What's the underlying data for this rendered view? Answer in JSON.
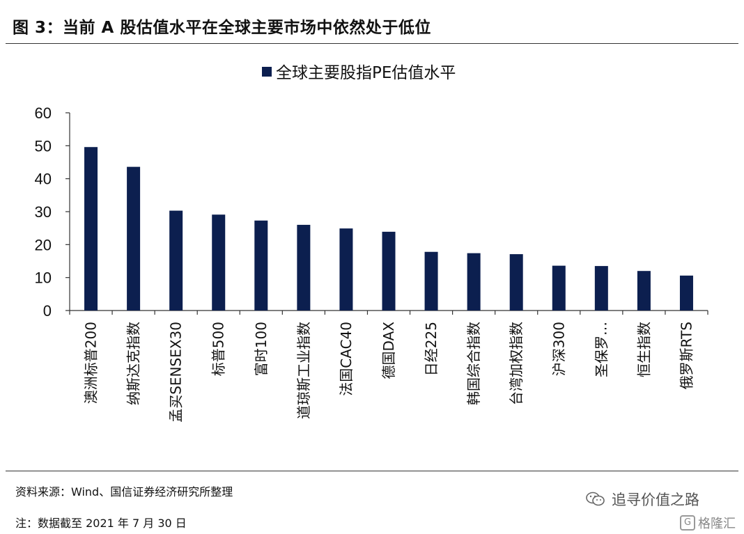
{
  "figure": {
    "title": "图 3：当前 A 股估值水平在全球主要市场中依然处于低位"
  },
  "chart_data": {
    "type": "bar",
    "title": "",
    "xlabel": "",
    "ylabel": "",
    "legend": {
      "entries": [
        "全球主要股指PE估值水平"
      ],
      "placement": "top-center"
    },
    "color": "#0c1f4f",
    "ylim": [
      0,
      60
    ],
    "yticks": [
      "0",
      "10",
      "20",
      "30",
      "40",
      "50",
      "60"
    ],
    "grid": false,
    "categories": [
      "澳洲标普200",
      "纳斯达克指数",
      "孟买SENSEX30",
      "标普500",
      "富时100",
      "道琼斯工业指数",
      "法国CAC40",
      "德国DAX",
      "日经225",
      "韩国综合指数",
      "台湾加权指数",
      "沪深300",
      "圣保罗…",
      "恒生指数",
      "俄罗斯RTS"
    ],
    "series": [
      {
        "values": [
          49.6,
          43.6,
          30.3,
          29.1,
          27.3,
          26.0,
          24.9,
          23.9,
          17.8,
          17.4,
          17.1,
          13.6,
          13.5,
          12.0,
          10.6
        ]
      }
    ]
  },
  "footer": {
    "source": "资料来源：Wind、国信证券经济研究所整理",
    "note": "注：数据截至 2021 年 7 月 30 日"
  },
  "watermark": {
    "wechat": "追寻价值之路",
    "gelonghui": "格隆汇"
  },
  "icons": {
    "wechat": "wechat-icon",
    "gelonghui": "gelonghui-logo-icon"
  }
}
